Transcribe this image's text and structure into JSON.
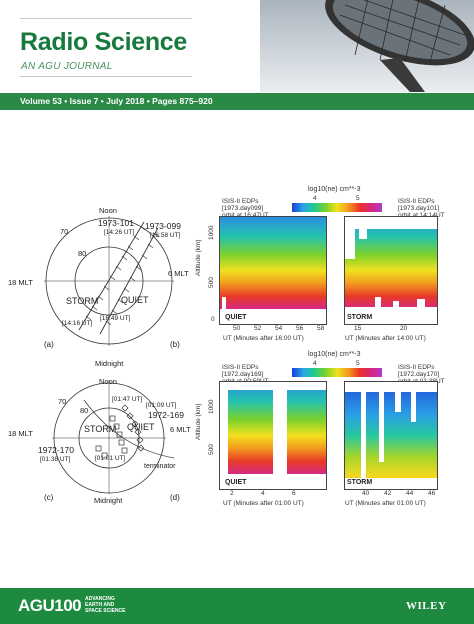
{
  "journal": {
    "title": "Radio Science",
    "subtitle": "AN AGU JOURNAL",
    "issue": "Volume 53 • Issue 7 • July 2018 • Pages 875–920"
  },
  "panels": {
    "a": {
      "label": "(a)",
      "noon": "Noon",
      "midnight": "Midnight",
      "mlt18": "18 MLT",
      "mlt6": "6 MLT",
      "lat70": "70",
      "lat80": "80",
      "pass1": "1973-101",
      "pass1_time_top": "[14:26 UT]",
      "pass1_time_bottom": "[14:16 UT]",
      "pass2": "1973-099",
      "pass2_time_top": "[16:58 UT]",
      "pass2_time_bottom": "[16:49 UT]",
      "storm": "STORM",
      "quiet": "QUIET"
    },
    "b": {
      "label": "(b)"
    },
    "c": {
      "label": "(c)",
      "noon": "Noon",
      "midnight": "Midnight",
      "mlt18": "18 MLT",
      "mlt6": "6 MLT",
      "lat70": "70",
      "lat80": "80",
      "t1": "[01:47 UT]",
      "t2": "[01:09 UT]",
      "t3": "[01:38 UT]",
      "t4": "[01:01 UT]",
      "pass1": "1972-169",
      "pass2": "1972-170",
      "storm": "STORM",
      "quiet": "QUIET",
      "terminator": "terminator"
    },
    "d": {
      "label": "(d)"
    }
  },
  "top_plots": {
    "colorbar_title": "log10(ne) cm**-3",
    "colorbar_ticks": [
      "4",
      "5"
    ],
    "ylabel": "Altitude (km)",
    "yticks": [
      "1000",
      "500",
      "0"
    ],
    "left": {
      "info": [
        "ISIS-II EDPs",
        "[1973.day099]",
        "orbit at 16:47UT"
      ],
      "xticks": [
        "50",
        "52",
        "54",
        "56",
        "58"
      ],
      "tag": "QUIET",
      "xlabel": "UT (Minutes after 16:00 UT)"
    },
    "right": {
      "info": [
        "ISIS-II EDPs",
        "[1973.day101]",
        "orbit at 14:14UT"
      ],
      "xticks": [
        "15",
        "20"
      ],
      "tag": "STORM",
      "xlabel": "UT (Minutes after 14:00 UT)"
    }
  },
  "bottom_plots": {
    "colorbar_title": "log10(ne) cm**-3",
    "colorbar_ticks": [
      "4",
      "5"
    ],
    "ylabel": "Altitude (km)",
    "yticks": [
      "1000",
      "500"
    ],
    "left": {
      "info": [
        "ISIS-II EDPs",
        "[1972.day169]",
        "orbit at 00:59UT"
      ],
      "xticks": [
        "2",
        "4",
        "6"
      ],
      "tag": "QUIET",
      "xlabel": "UT (Minutes after 01:00 UT)"
    },
    "right": {
      "info": [
        "ISIS-II EDPs",
        "[1972.day170]",
        "orbit at 01:38UT"
      ],
      "xticks": [
        "40",
        "42",
        "44",
        "46"
      ],
      "tag": "STORM",
      "xlabel": "UT (Minutes after 01:00 UT)"
    }
  },
  "footer": {
    "agu": "AGU100",
    "agu_tagline_1": "ADVANCING",
    "agu_tagline_2": "EARTH AND",
    "agu_tagline_3": "SPACE SCIENCE",
    "publisher": "WILEY"
  }
}
